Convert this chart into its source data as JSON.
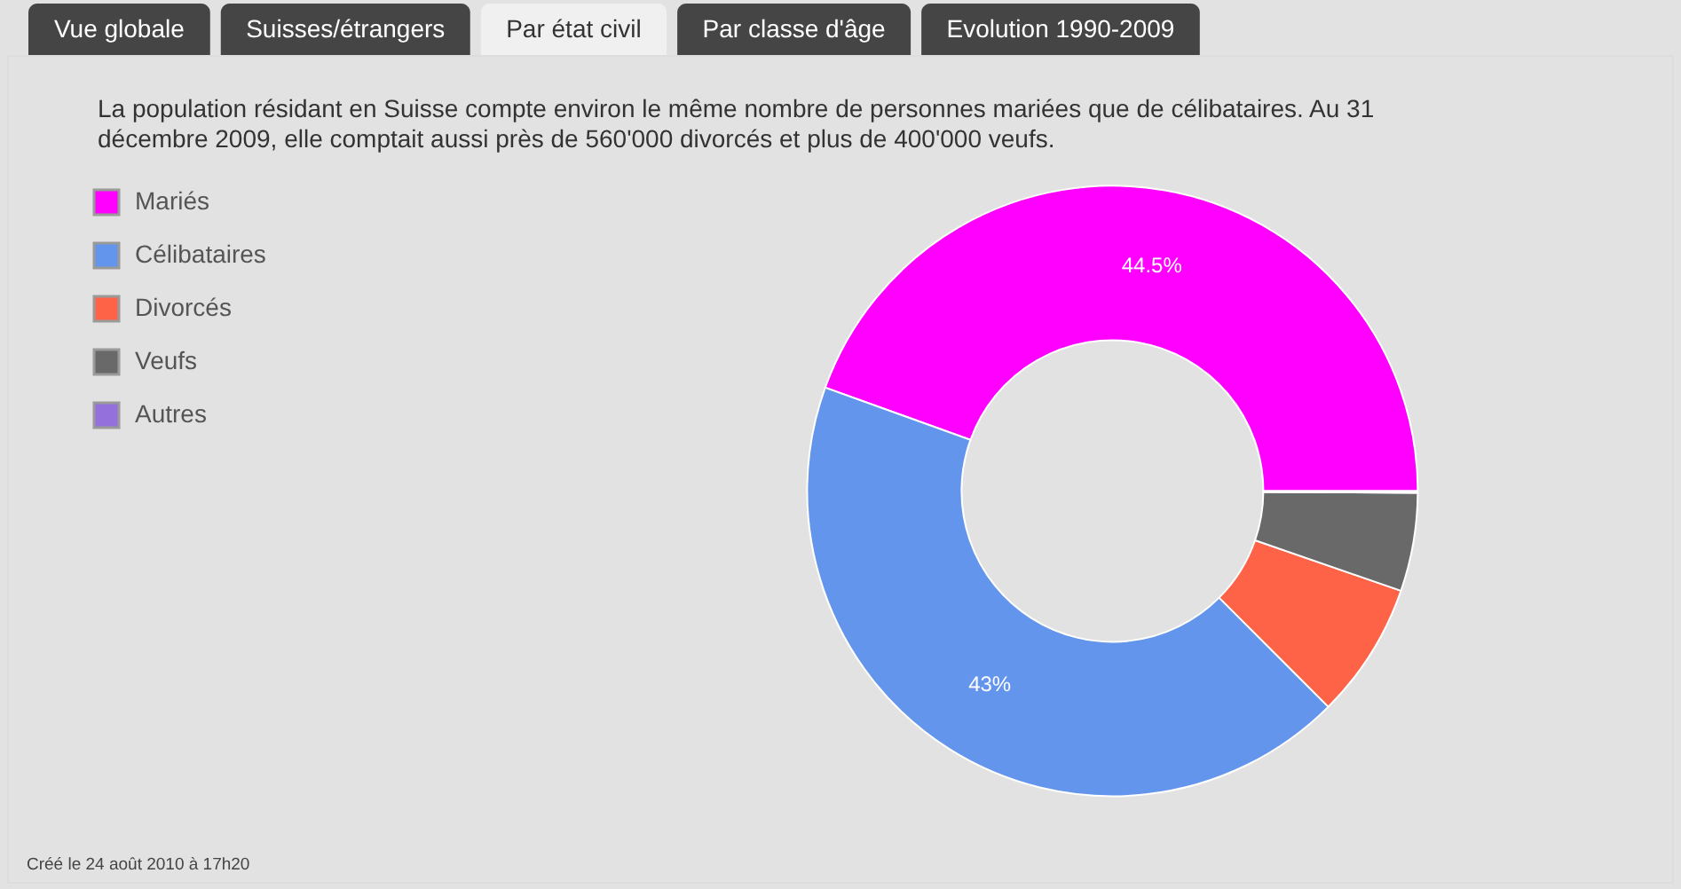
{
  "chart_data": {
    "type": "donut",
    "subtitle": "La population résidant en Suisse compte environ le même nombre de personnes mariées que de célibataires. Au 31 décembre 2009, elle comptait aussi près de 560'000 divorcés et plus de 400'000 veufs.",
    "categories": [
      "Mariés",
      "Célibataires",
      "Divorcés",
      "Veufs",
      "Autres"
    ],
    "values": [
      44.5,
      43,
      7.2,
      5.2,
      0.1
    ],
    "colors": [
      "#ff00ff",
      "#6495ed",
      "#ff6347",
      "#696969",
      "#9370db"
    ],
    "value_labels": [
      "44.5%",
      "43%",
      null,
      null,
      null
    ],
    "legend": "top left",
    "annotations": [
      "Vue globale",
      "Suisses/étrangers",
      "Par état civil",
      "Par classe d'âge",
      "Evolution 1990-2009",
      "Créé le 24 août 2010 à 17h20"
    ]
  }
}
